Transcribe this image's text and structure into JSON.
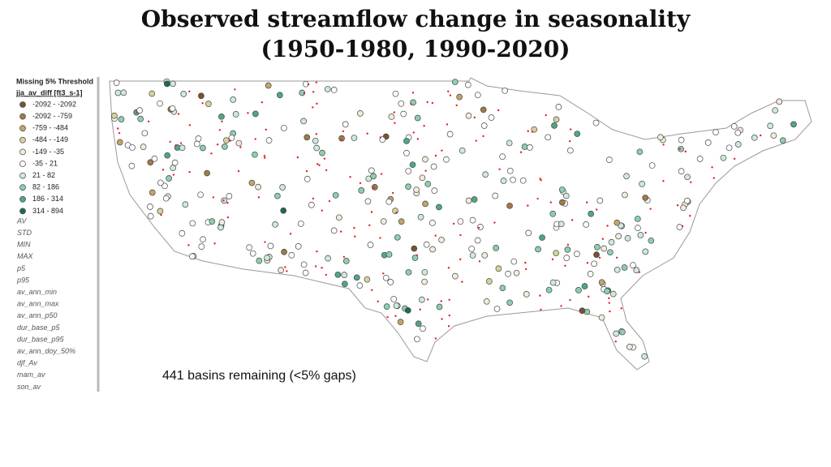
{
  "title": [
    "Observed streamflow change in seasonality",
    "(1950-1980, 1990-2020)"
  ],
  "legend": {
    "header": "Missing 5% Threshold",
    "field": "jja_av_diff [ft3_s-1]",
    "items": [
      {
        "label": "-2092 - -2092",
        "color": "#7a5230"
      },
      {
        "label": "-2092 - -759",
        "color": "#a07a48"
      },
      {
        "label": "-759 - -484",
        "color": "#c4a468"
      },
      {
        "label": "-484 - -149",
        "color": "#d9d29a"
      },
      {
        "label": "-149 - -35",
        "color": "#f0ecd8"
      },
      {
        "label": "-35 - 21",
        "color": "#ffffff"
      },
      {
        "label": "21 - 82",
        "color": "#cfe9dc"
      },
      {
        "label": "82 - 186",
        "color": "#8ccfb0"
      },
      {
        "label": "186 - 314",
        "color": "#4ea884"
      },
      {
        "label": "314 - 894",
        "color": "#1e6b4d"
      }
    ],
    "layers": [
      "AV",
      "STD",
      "MIN",
      "MAX",
      "p5",
      "p95",
      "av_ann_min",
      "av_ann_max",
      "av_ann_p50",
      "dur_base_p5",
      "dur_base_p95",
      "av_ann_doy_50%",
      "djf_Av",
      "mam_av",
      "son_av"
    ]
  },
  "caption": "441 basins remaining (<5% gaps)"
}
